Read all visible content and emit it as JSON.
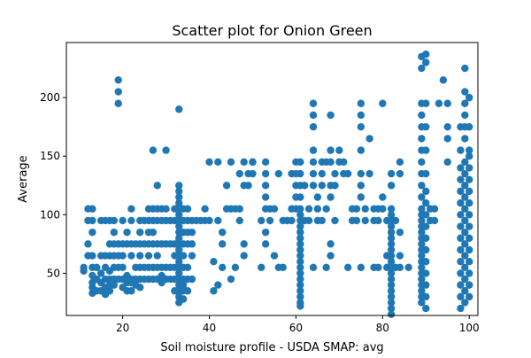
{
  "chart_data": {
    "type": "scatter",
    "title": "Scatter plot for Onion Green",
    "xlabel": "Soil moisture profile - USDA SMAP: avg",
    "ylabel": "Average",
    "xlim": [
      7,
      102
    ],
    "ylim": [
      14,
      247
    ],
    "xticks": [
      20,
      40,
      60,
      80,
      100
    ],
    "yticks": [
      50,
      100,
      150,
      200
    ],
    "grid": false,
    "legend": "none",
    "color": "#1f77b4",
    "points": [
      [
        11,
        52
      ],
      [
        11,
        55
      ],
      [
        12,
        75
      ],
      [
        12,
        65
      ],
      [
        12,
        95
      ],
      [
        12,
        105
      ],
      [
        13,
        33
      ],
      [
        13,
        38
      ],
      [
        13,
        42
      ],
      [
        13,
        48
      ],
      [
        13,
        55
      ],
      [
        13,
        65
      ],
      [
        13,
        85
      ],
      [
        13,
        95
      ],
      [
        13,
        105
      ],
      [
        14,
        35
      ],
      [
        14,
        45
      ],
      [
        14,
        55
      ],
      [
        15,
        35
      ],
      [
        15,
        42
      ],
      [
        15,
        50
      ],
      [
        15,
        65
      ],
      [
        15,
        95
      ],
      [
        16,
        32
      ],
      [
        16,
        38
      ],
      [
        16,
        45
      ],
      [
        16,
        55
      ],
      [
        16,
        65
      ],
      [
        16,
        95
      ],
      [
        17,
        35
      ],
      [
        17,
        40
      ],
      [
        17,
        45
      ],
      [
        17,
        52
      ],
      [
        17,
        65
      ],
      [
        17,
        75
      ],
      [
        17,
        95
      ],
      [
        18,
        40
      ],
      [
        18,
        45
      ],
      [
        18,
        55
      ],
      [
        18,
        65
      ],
      [
        18,
        75
      ],
      [
        18,
        85
      ],
      [
        18,
        95
      ],
      [
        19,
        45
      ],
      [
        19,
        55
      ],
      [
        19,
        65
      ],
      [
        19,
        75
      ],
      [
        19,
        195
      ],
      [
        19,
        205
      ],
      [
        19,
        215
      ],
      [
        20,
        38
      ],
      [
        20,
        45
      ],
      [
        20,
        55
      ],
      [
        20,
        65
      ],
      [
        20,
        75
      ],
      [
        20,
        95
      ],
      [
        21,
        35
      ],
      [
        21,
        42
      ],
      [
        21,
        48
      ],
      [
        21,
        75
      ],
      [
        21,
        85
      ],
      [
        22,
        35
      ],
      [
        22,
        42
      ],
      [
        22,
        45
      ],
      [
        22,
        65
      ],
      [
        22,
        75
      ],
      [
        22,
        95
      ],
      [
        22,
        105
      ],
      [
        23,
        40
      ],
      [
        23,
        45
      ],
      [
        23,
        55
      ],
      [
        23,
        75
      ],
      [
        24,
        38
      ],
      [
        24,
        45
      ],
      [
        24,
        55
      ],
      [
        24,
        65
      ],
      [
        24,
        75
      ],
      [
        24,
        85
      ],
      [
        24,
        95
      ],
      [
        25,
        45
      ],
      [
        25,
        55
      ],
      [
        25,
        75
      ],
      [
        25,
        95
      ],
      [
        26,
        45
      ],
      [
        26,
        55
      ],
      [
        26,
        65
      ],
      [
        26,
        75
      ],
      [
        26,
        85
      ],
      [
        26,
        95
      ],
      [
        26,
        105
      ],
      [
        27,
        45
      ],
      [
        27,
        55
      ],
      [
        27,
        75
      ],
      [
        27,
        85
      ],
      [
        27,
        95
      ],
      [
        27,
        105
      ],
      [
        27,
        155
      ],
      [
        28,
        45
      ],
      [
        28,
        55
      ],
      [
        28,
        65
      ],
      [
        28,
        75
      ],
      [
        28,
        95
      ],
      [
        28,
        105
      ],
      [
        28,
        125
      ],
      [
        29,
        42
      ],
      [
        29,
        48
      ],
      [
        29,
        55
      ],
      [
        29,
        75
      ],
      [
        29,
        95
      ],
      [
        29,
        105
      ],
      [
        30,
        45
      ],
      [
        30,
        55
      ],
      [
        30,
        75
      ],
      [
        30,
        95
      ],
      [
        30,
        105
      ],
      [
        30,
        155
      ],
      [
        31,
        45
      ],
      [
        31,
        55
      ],
      [
        31,
        75
      ],
      [
        31,
        95
      ],
      [
        32,
        35
      ],
      [
        32,
        45
      ],
      [
        32,
        55
      ],
      [
        32,
        65
      ],
      [
        32,
        75
      ],
      [
        32,
        95
      ],
      [
        32,
        105
      ],
      [
        33,
        25
      ],
      [
        33,
        30
      ],
      [
        33,
        35
      ],
      [
        33,
        40
      ],
      [
        33,
        45
      ],
      [
        33,
        50
      ],
      [
        33,
        55
      ],
      [
        33,
        60
      ],
      [
        33,
        65
      ],
      [
        33,
        70
      ],
      [
        33,
        75
      ],
      [
        33,
        80
      ],
      [
        33,
        85
      ],
      [
        33,
        90
      ],
      [
        33,
        95
      ],
      [
        33,
        100
      ],
      [
        33,
        105
      ],
      [
        33,
        110
      ],
      [
        33,
        115
      ],
      [
        33,
        120
      ],
      [
        33,
        125
      ],
      [
        33,
        190
      ],
      [
        34,
        28
      ],
      [
        34,
        35
      ],
      [
        34,
        40
      ],
      [
        34,
        45
      ],
      [
        34,
        55
      ],
      [
        34,
        65
      ],
      [
        34,
        75
      ],
      [
        34,
        85
      ],
      [
        34,
        95
      ],
      [
        34,
        105
      ],
      [
        35,
        35
      ],
      [
        35,
        45
      ],
      [
        35,
        55
      ],
      [
        35,
        75
      ],
      [
        35,
        85
      ],
      [
        35,
        95
      ],
      [
        35,
        105
      ],
      [
        36,
        45
      ],
      [
        36,
        65
      ],
      [
        36,
        75
      ],
      [
        36,
        85
      ],
      [
        36,
        95
      ],
      [
        37,
        95
      ],
      [
        38,
        95
      ],
      [
        39,
        105
      ],
      [
        39,
        95
      ],
      [
        40,
        95
      ],
      [
        40,
        145
      ],
      [
        41,
        60
      ],
      [
        41,
        35
      ],
      [
        42,
        40
      ],
      [
        42,
        95
      ],
      [
        42,
        145
      ],
      [
        43,
        55
      ],
      [
        43,
        85
      ],
      [
        43,
        75
      ],
      [
        44,
        105
      ],
      [
        44,
        125
      ],
      [
        45,
        45
      ],
      [
        45,
        145
      ],
      [
        45,
        105
      ],
      [
        46,
        55
      ],
      [
        46,
        105
      ],
      [
        47,
        105
      ],
      [
        47,
        135
      ],
      [
        47,
        95
      ],
      [
        48,
        65
      ],
      [
        48,
        75
      ],
      [
        48,
        125
      ],
      [
        48,
        145
      ],
      [
        49,
        125
      ],
      [
        49,
        135
      ],
      [
        50,
        135
      ],
      [
        50,
        145
      ],
      [
        50,
        145
      ],
      [
        52,
        55
      ],
      [
        52,
        95
      ],
      [
        53,
        75
      ],
      [
        53,
        85
      ],
      [
        53,
        105
      ],
      [
        53,
        115
      ],
      [
        53,
        125
      ],
      [
        53,
        135
      ],
      [
        53,
        145
      ],
      [
        54,
        95
      ],
      [
        54,
        105
      ],
      [
        55,
        65
      ],
      [
        55,
        105
      ],
      [
        56,
        55
      ],
      [
        56,
        135
      ],
      [
        57,
        55
      ],
      [
        57,
        95
      ],
      [
        58,
        95
      ],
      [
        59,
        95
      ],
      [
        59,
        105
      ],
      [
        59,
        135
      ],
      [
        60,
        105
      ],
      [
        60,
        115
      ],
      [
        60,
        125
      ],
      [
        60,
        135
      ],
      [
        60,
        145
      ],
      [
        61,
        22
      ],
      [
        61,
        25
      ],
      [
        61,
        30
      ],
      [
        61,
        35
      ],
      [
        61,
        40
      ],
      [
        61,
        45
      ],
      [
        61,
        50
      ],
      [
        61,
        55
      ],
      [
        61,
        60
      ],
      [
        61,
        65
      ],
      [
        61,
        70
      ],
      [
        61,
        75
      ],
      [
        61,
        80
      ],
      [
        61,
        85
      ],
      [
        61,
        90
      ],
      [
        61,
        95
      ],
      [
        61,
        100
      ],
      [
        61,
        105
      ],
      [
        61,
        115
      ],
      [
        61,
        125
      ],
      [
        61,
        135
      ],
      [
        61,
        145
      ],
      [
        62,
        95
      ],
      [
        62,
        125
      ],
      [
        63,
        95
      ],
      [
        63,
        105
      ],
      [
        64,
        55
      ],
      [
        64,
        125
      ],
      [
        64,
        135
      ],
      [
        64,
        145
      ],
      [
        64,
        155
      ],
      [
        64,
        175
      ],
      [
        64,
        185
      ],
      [
        64,
        195
      ],
      [
        65,
        95
      ],
      [
        65,
        105
      ],
      [
        65,
        115
      ],
      [
        66,
        95
      ],
      [
        66,
        125
      ],
      [
        66,
        135
      ],
      [
        66,
        145
      ],
      [
        67,
        55
      ],
      [
        67,
        105
      ],
      [
        67,
        145
      ],
      [
        68,
        65
      ],
      [
        68,
        75
      ],
      [
        68,
        115
      ],
      [
        68,
        125
      ],
      [
        68,
        145
      ],
      [
        68,
        155
      ],
      [
        68,
        185
      ],
      [
        69,
        95
      ],
      [
        69,
        125
      ],
      [
        69,
        135
      ],
      [
        70,
        145
      ],
      [
        70,
        155
      ],
      [
        71,
        135
      ],
      [
        71,
        145
      ],
      [
        72,
        55
      ],
      [
        72,
        135
      ],
      [
        73,
        95
      ],
      [
        73,
        105
      ],
      [
        74,
        95
      ],
      [
        74,
        105
      ],
      [
        75,
        55
      ],
      [
        75,
        115
      ],
      [
        75,
        125
      ],
      [
        75,
        135
      ],
      [
        75,
        155
      ],
      [
        75,
        175
      ],
      [
        75,
        185
      ],
      [
        75,
        195
      ],
      [
        76,
        95
      ],
      [
        76,
        105
      ],
      [
        77,
        165
      ],
      [
        77,
        135
      ],
      [
        78,
        55
      ],
      [
        78,
        95
      ],
      [
        78,
        105
      ],
      [
        79,
        55
      ],
      [
        79,
        95
      ],
      [
        79,
        105
      ],
      [
        80,
        105
      ],
      [
        80,
        115
      ],
      [
        80,
        195
      ],
      [
        81,
        55
      ],
      [
        81,
        95
      ],
      [
        81,
        65
      ],
      [
        82,
        15
      ],
      [
        82,
        20
      ],
      [
        82,
        25
      ],
      [
        82,
        30
      ],
      [
        82,
        35
      ],
      [
        82,
        40
      ],
      [
        82,
        45
      ],
      [
        82,
        50
      ],
      [
        82,
        55
      ],
      [
        82,
        60
      ],
      [
        82,
        65
      ],
      [
        82,
        70
      ],
      [
        82,
        75
      ],
      [
        82,
        80
      ],
      [
        82,
        85
      ],
      [
        82,
        90
      ],
      [
        82,
        95
      ],
      [
        82,
        100
      ],
      [
        82,
        105
      ],
      [
        82,
        125
      ],
      [
        82,
        135
      ],
      [
        83,
        55
      ],
      [
        83,
        95
      ],
      [
        84,
        55
      ],
      [
        84,
        65
      ],
      [
        84,
        85
      ],
      [
        84,
        135
      ],
      [
        84,
        145
      ],
      [
        86,
        55
      ],
      [
        89,
        25
      ],
      [
        89,
        30
      ],
      [
        89,
        35
      ],
      [
        89,
        40
      ],
      [
        89,
        45
      ],
      [
        89,
        50
      ],
      [
        89,
        55
      ],
      [
        89,
        60
      ],
      [
        89,
        65
      ],
      [
        89,
        70
      ],
      [
        89,
        75
      ],
      [
        89,
        80
      ],
      [
        89,
        85
      ],
      [
        89,
        90
      ],
      [
        89,
        95
      ],
      [
        89,
        100
      ],
      [
        89,
        105
      ],
      [
        89,
        115
      ],
      [
        89,
        125
      ],
      [
        89,
        135
      ],
      [
        89,
        145
      ],
      [
        89,
        155
      ],
      [
        89,
        165
      ],
      [
        89,
        175
      ],
      [
        89,
        185
      ],
      [
        89,
        195
      ],
      [
        89,
        225
      ],
      [
        89,
        235
      ],
      [
        90,
        20
      ],
      [
        90,
        30
      ],
      [
        90,
        40
      ],
      [
        90,
        50
      ],
      [
        90,
        60
      ],
      [
        90,
        70
      ],
      [
        90,
        80
      ],
      [
        90,
        90
      ],
      [
        90,
        100
      ],
      [
        90,
        110
      ],
      [
        90,
        120
      ],
      [
        90,
        135
      ],
      [
        90,
        155
      ],
      [
        90,
        175
      ],
      [
        90,
        195
      ],
      [
        90,
        230
      ],
      [
        90,
        237
      ],
      [
        91,
        95
      ],
      [
        91,
        105
      ],
      [
        92,
        95
      ],
      [
        92,
        105
      ],
      [
        93,
        195
      ],
      [
        94,
        215
      ],
      [
        95,
        145
      ],
      [
        95,
        165
      ],
      [
        95,
        175
      ],
      [
        95,
        195
      ],
      [
        98,
        20
      ],
      [
        98,
        30
      ],
      [
        98,
        40
      ],
      [
        98,
        50
      ],
      [
        98,
        60
      ],
      [
        98,
        70
      ],
      [
        98,
        80
      ],
      [
        98,
        90
      ],
      [
        98,
        100
      ],
      [
        98,
        110
      ],
      [
        98,
        120
      ],
      [
        98,
        130
      ],
      [
        98,
        140
      ],
      [
        98,
        155
      ],
      [
        98,
        175
      ],
      [
        99,
        25
      ],
      [
        99,
        35
      ],
      [
        99,
        45
      ],
      [
        99,
        55
      ],
      [
        99,
        65
      ],
      [
        99,
        75
      ],
      [
        99,
        85
      ],
      [
        99,
        95
      ],
      [
        99,
        105
      ],
      [
        99,
        115
      ],
      [
        99,
        125
      ],
      [
        99,
        135
      ],
      [
        99,
        145
      ],
      [
        99,
        165
      ],
      [
        99,
        175
      ],
      [
        99,
        185
      ],
      [
        99,
        195
      ],
      [
        99,
        205
      ],
      [
        99,
        225
      ],
      [
        100,
        30
      ],
      [
        100,
        40
      ],
      [
        100,
        50
      ],
      [
        100,
        60
      ],
      [
        100,
        70
      ],
      [
        100,
        80
      ],
      [
        100,
        90
      ],
      [
        100,
        100
      ],
      [
        100,
        110
      ],
      [
        100,
        120
      ],
      [
        100,
        130
      ],
      [
        100,
        140
      ],
      [
        100,
        150
      ],
      [
        100,
        155
      ],
      [
        100,
        175
      ],
      [
        100,
        200
      ]
    ]
  }
}
